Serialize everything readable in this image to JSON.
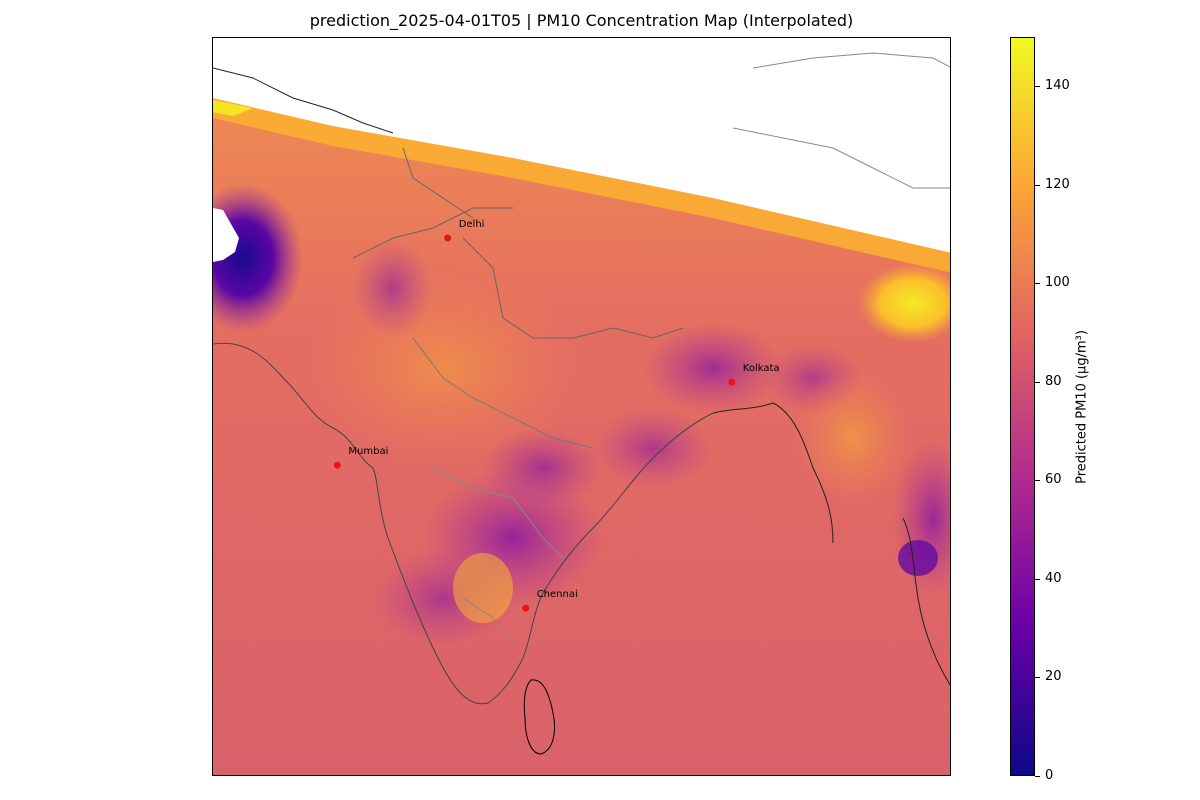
{
  "title": "prediction_2025-04-01T05 | PM10 Concentration Map (Interpolated)",
  "colorbar": {
    "label": "Predicted PM10 (µg/m³)",
    "colormap": "plasma",
    "range": [
      0,
      150
    ],
    "ticks": [
      "0",
      "20",
      "40",
      "60",
      "80",
      "100",
      "120",
      "140"
    ],
    "tick_values": [
      0,
      20,
      40,
      60,
      80,
      100,
      120,
      140
    ],
    "colors": [
      "#0d0887",
      "#6a00a8",
      "#b12a90",
      "#e16462",
      "#fca636",
      "#f0f921"
    ]
  },
  "cities": [
    {
      "name": "Delhi",
      "lon": 77.21,
      "lat": 28.61
    },
    {
      "name": "Mumbai",
      "lon": 72.88,
      "lat": 19.08
    },
    {
      "name": "Kolkata",
      "lon": 88.36,
      "lat": 22.57
    },
    {
      "name": "Chennai",
      "lon": 80.27,
      "lat": 13.08
    }
  ],
  "map": {
    "lon_range": [
      68,
      97
    ],
    "lat_range": [
      6,
      37
    ],
    "marker_color": "#e8141a"
  }
}
